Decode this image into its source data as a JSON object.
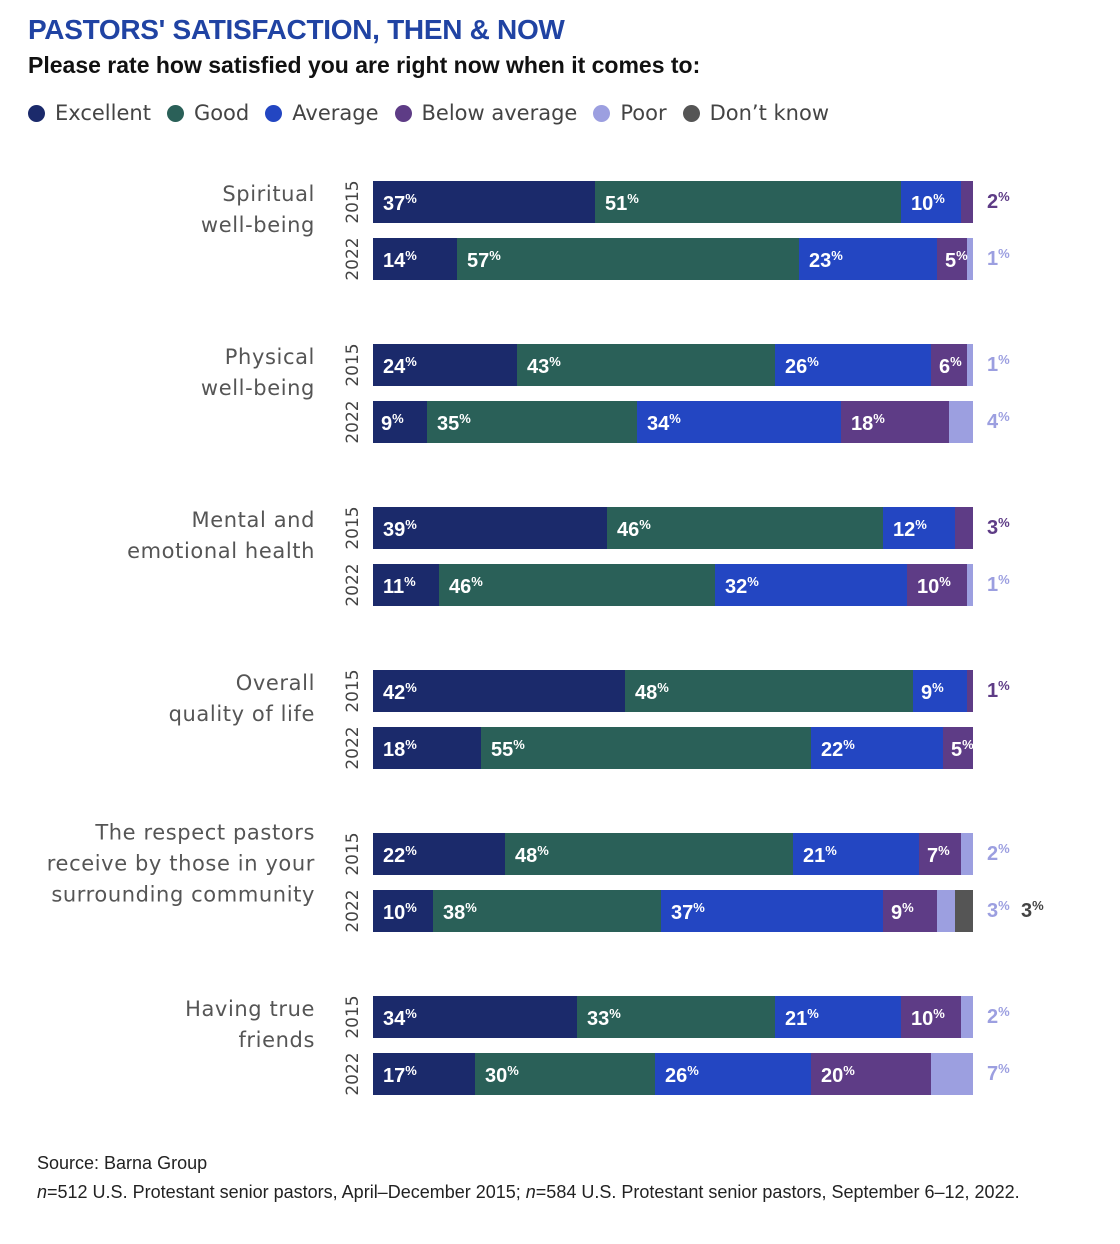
{
  "colors": {
    "excellent": "#1b2a6b",
    "good": "#2a6058",
    "average": "#2346c2",
    "below_average": "#5e3c86",
    "poor": "#9c9fe0",
    "dont_know": "#555555",
    "title": "#2043a3"
  },
  "header": {
    "title": "PASTORS' SATISFACTION, THEN & NOW",
    "subtitle": "Please rate how satisfied you are right now when it comes to:"
  },
  "legend": [
    {
      "label": "Excellent",
      "color": "#1b2a6b"
    },
    {
      "label": "Good",
      "color": "#2a6058"
    },
    {
      "label": "Average",
      "color": "#2346c2"
    },
    {
      "label": "Below average",
      "color": "#5e3c86"
    },
    {
      "label": "Poor",
      "color": "#9c9fe0"
    },
    {
      "label": "Don’t know",
      "color": "#555555"
    }
  ],
  "chart_data": {
    "type": "bar",
    "orientation": "horizontal",
    "stacked": true,
    "title": "PASTORS' SATISFACTION, THEN & NOW",
    "subtitle": "Please rate how satisfied you are right now when it comes to:",
    "series_names": [
      "Excellent",
      "Good",
      "Average",
      "Below average",
      "Poor",
      "Don’t know"
    ],
    "xlim": [
      0,
      100
    ],
    "unit": "%",
    "groups": [
      {
        "label": [
          "Spiritual",
          "well-being"
        ],
        "bars": [
          {
            "year": "2015",
            "values": [
              37,
              51,
              10,
              2,
              0,
              0
            ]
          },
          {
            "year": "2022",
            "values": [
              14,
              57,
              23,
              5,
              1,
              0
            ]
          }
        ]
      },
      {
        "label": [
          "Physical",
          "well-being"
        ],
        "bars": [
          {
            "year": "2015",
            "values": [
              24,
              43,
              26,
              6,
              1,
              0
            ]
          },
          {
            "year": "2022",
            "values": [
              9,
              35,
              34,
              18,
              4,
              0
            ]
          }
        ]
      },
      {
        "label": [
          "Mental and",
          "emotional health"
        ],
        "bars": [
          {
            "year": "2015",
            "values": [
              39,
              46,
              12,
              3,
              0,
              0
            ]
          },
          {
            "year": "2022",
            "values": [
              11,
              46,
              32,
              10,
              1,
              0
            ]
          }
        ]
      },
      {
        "label": [
          "Overall",
          "quality of life"
        ],
        "bars": [
          {
            "year": "2015",
            "values": [
              42,
              48,
              9,
              1,
              0,
              0
            ]
          },
          {
            "year": "2022",
            "values": [
              18,
              55,
              22,
              5,
              0,
              0
            ]
          }
        ]
      },
      {
        "label": [
          "The respect pastors",
          "receive by those in your",
          "surrounding community"
        ],
        "bars": [
          {
            "year": "2015",
            "values": [
              22,
              48,
              21,
              7,
              2,
              0
            ]
          },
          {
            "year": "2022",
            "values": [
              10,
              38,
              37,
              9,
              3,
              3
            ]
          }
        ]
      },
      {
        "label": [
          "Having true",
          "friends"
        ],
        "bars": [
          {
            "year": "2015",
            "values": [
              34,
              33,
              21,
              10,
              2,
              0
            ]
          },
          {
            "year": "2022",
            "values": [
              17,
              30,
              26,
              20,
              7,
              0
            ]
          }
        ]
      }
    ]
  },
  "footer": {
    "source": "Source: Barna Group",
    "n1_letter": "n",
    "n1_text": "=512 U.S. Protestant senior pastors, April–December 2015; ",
    "n2_letter": "n",
    "n2_text": "=584 U.S. Protestant senior pastors, September 6–12, 2022."
  }
}
